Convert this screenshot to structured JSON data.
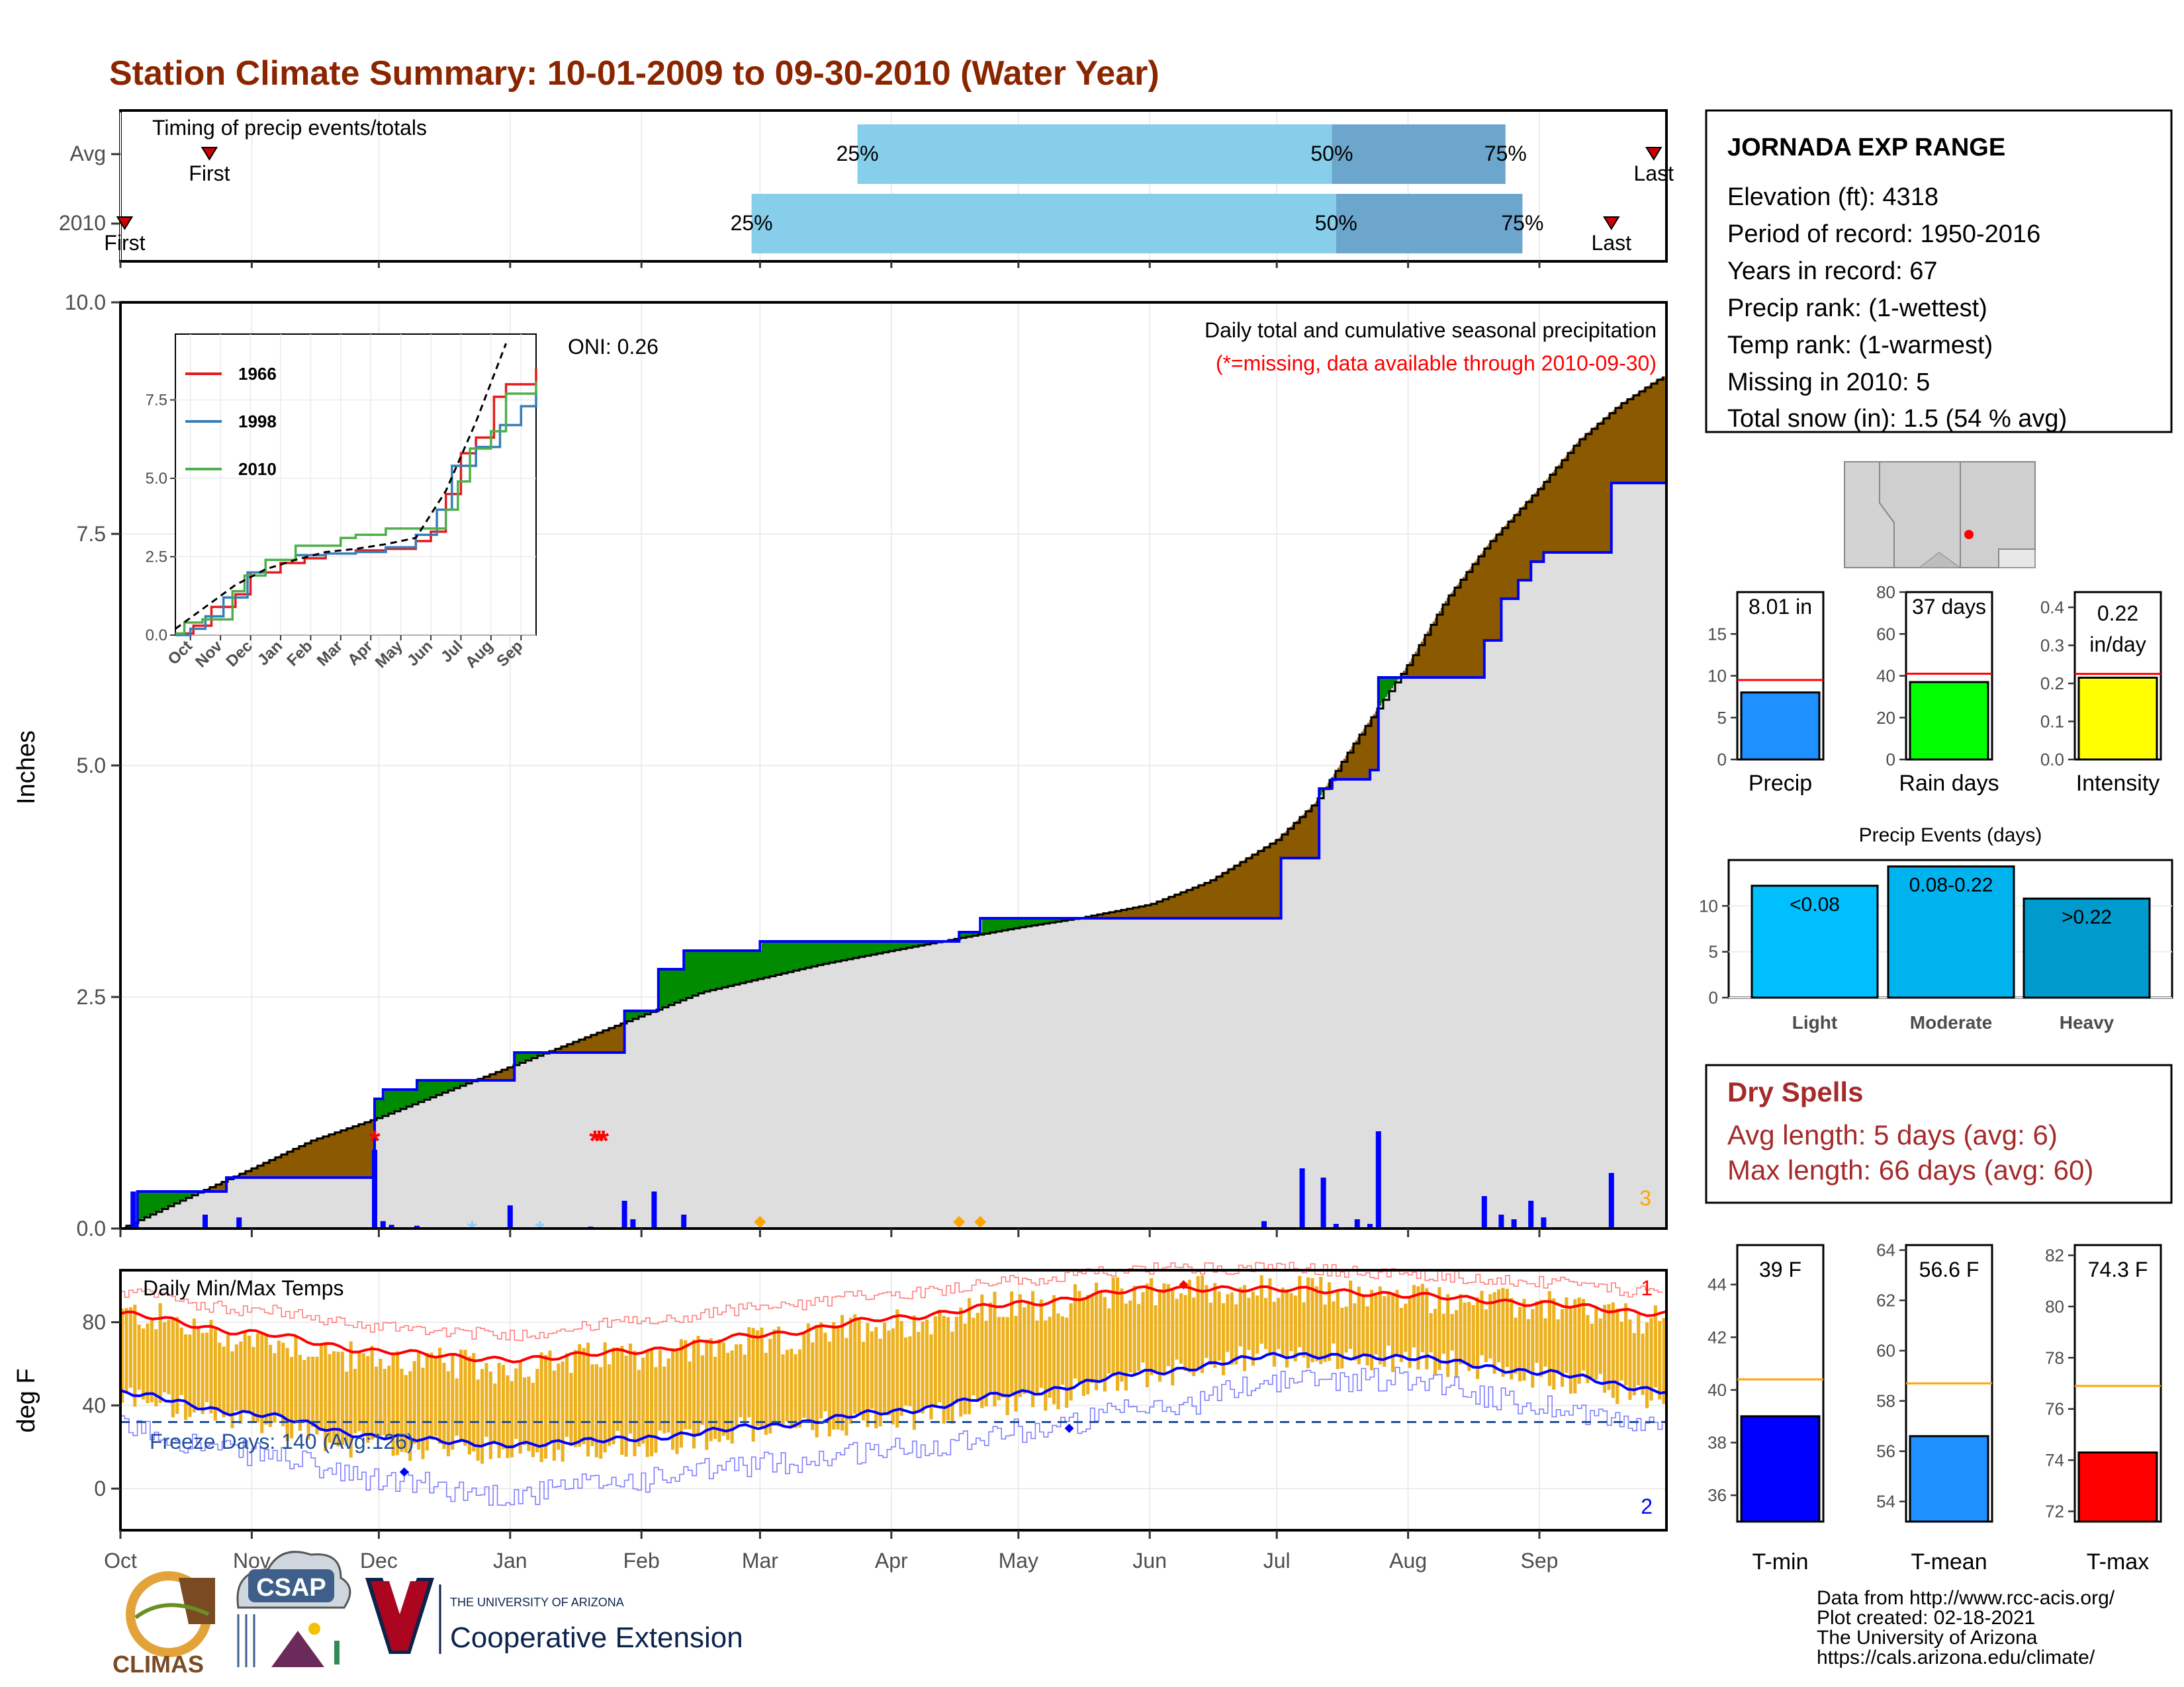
{
  "title": "Station Climate Summary: 10-01-2009 to 09-30-2010 (Water Year)",
  "colors": {
    "title": "#8B2500",
    "light_blue": "#87CEEB",
    "mid_blue": "#6CA6CD",
    "brown": "#8B5A00",
    "green": "#008B00",
    "grey_fill": "#DEDEDE",
    "gold": "#EDB120",
    "dry_spell_text": "#A52A2A"
  },
  "timing": {
    "label": "Timing of precip events/totals",
    "rows": [
      {
        "name": "Avg",
        "first_date": "2009-10-22",
        "last_date": "2010-09-28",
        "q25_date": "2010-03-24",
        "q50_date": "2010-07-14",
        "q75_date": "2010-08-24",
        "first_label": "First",
        "last_label": "Last",
        "q25_label": "25%",
        "q50_label": "50%",
        "q75_label": "75%"
      },
      {
        "name": "2010",
        "first_date": "2009-10-02",
        "last_date": "2010-09-18",
        "q25_date": "2010-02-27",
        "q50_date": "2010-07-15",
        "q75_date": "2010-08-28",
        "first_label": "First",
        "last_label": "Last",
        "q25_label": "25%",
        "q50_label": "50%",
        "q75_label": "75%"
      }
    ]
  },
  "precip_panel": {
    "ylabel": "Inches",
    "yticks": [
      "0.0",
      "2.5",
      "5.0",
      "7.5",
      "10.0"
    ],
    "ylim": [
      0,
      10
    ],
    "oni": "ONI: 0.26",
    "note1": "Daily total and cumulative seasonal precipitation",
    "note2": "(*=missing, data available through 2010-09-30)",
    "corner_count": "3",
    "avg_cumulative": [
      {
        "x": "2009-10-01",
        "y": 0.0
      },
      {
        "x": "2009-10-15",
        "y": 0.3
      },
      {
        "x": "2009-11-01",
        "y": 0.65
      },
      {
        "x": "2009-11-15",
        "y": 0.95
      },
      {
        "x": "2009-12-01",
        "y": 1.2
      },
      {
        "x": "2009-12-15",
        "y": 1.45
      },
      {
        "x": "2010-01-01",
        "y": 1.75
      },
      {
        "x": "2010-01-15",
        "y": 2.0
      },
      {
        "x": "2010-02-01",
        "y": 2.3
      },
      {
        "x": "2010-02-15",
        "y": 2.55
      },
      {
        "x": "2010-03-01",
        "y": 2.7
      },
      {
        "x": "2010-03-15",
        "y": 2.85
      },
      {
        "x": "2010-04-01",
        "y": 3.0
      },
      {
        "x": "2010-04-15",
        "y": 3.12
      },
      {
        "x": "2010-05-01",
        "y": 3.25
      },
      {
        "x": "2010-05-15",
        "y": 3.35
      },
      {
        "x": "2010-06-01",
        "y": 3.5
      },
      {
        "x": "2010-06-15",
        "y": 3.75
      },
      {
        "x": "2010-07-01",
        "y": 4.2
      },
      {
        "x": "2010-07-10",
        "y": 4.6
      },
      {
        "x": "2010-07-20",
        "y": 5.3
      },
      {
        "x": "2010-08-01",
        "y": 6.1
      },
      {
        "x": "2010-08-10",
        "y": 6.8
      },
      {
        "x": "2010-08-20",
        "y": 7.4
      },
      {
        "x": "2010-09-01",
        "y": 8.0
      },
      {
        "x": "2010-09-10",
        "y": 8.5
      },
      {
        "x": "2010-09-20",
        "y": 8.9
      },
      {
        "x": "2010-09-30",
        "y": 9.2
      }
    ],
    "cumulative_2010": [
      {
        "x": "2009-10-01",
        "y": 0.0
      },
      {
        "x": "2009-10-05",
        "y": 0.4
      },
      {
        "x": "2009-10-26",
        "y": 0.55
      },
      {
        "x": "2009-11-30",
        "y": 1.4
      },
      {
        "x": "2009-12-02",
        "y": 1.5
      },
      {
        "x": "2009-12-10",
        "y": 1.6
      },
      {
        "x": "2010-01-02",
        "y": 1.9
      },
      {
        "x": "2010-01-28",
        "y": 2.35
      },
      {
        "x": "2010-02-05",
        "y": 2.8
      },
      {
        "x": "2010-02-11",
        "y": 3.0
      },
      {
        "x": "2010-03-01",
        "y": 3.1
      },
      {
        "x": "2010-04-17",
        "y": 3.2
      },
      {
        "x": "2010-04-22",
        "y": 3.35
      },
      {
        "x": "2010-07-02",
        "y": 4.0
      },
      {
        "x": "2010-07-11",
        "y": 4.75
      },
      {
        "x": "2010-07-14",
        "y": 4.85
      },
      {
        "x": "2010-07-23",
        "y": 4.95
      },
      {
        "x": "2010-07-25",
        "y": 5.95
      },
      {
        "x": "2010-08-19",
        "y": 6.35
      },
      {
        "x": "2010-08-23",
        "y": 6.8
      },
      {
        "x": "2010-08-27",
        "y": 7.0
      },
      {
        "x": "2010-08-30",
        "y": 7.2
      },
      {
        "x": "2010-09-02",
        "y": 7.3
      },
      {
        "x": "2010-09-18",
        "y": 8.05
      }
    ],
    "daily_bars": [
      {
        "x": "2009-10-04",
        "y": 0.4
      },
      {
        "x": "2009-10-21",
        "y": 0.15
      },
      {
        "x": "2009-10-29",
        "y": 0.12
      },
      {
        "x": "2009-11-30",
        "y": 0.85
      },
      {
        "x": "2009-12-02",
        "y": 0.08
      },
      {
        "x": "2009-12-04",
        "y": 0.04
      },
      {
        "x": "2009-12-10",
        "y": 0.03
      },
      {
        "x": "2010-01-01",
        "y": 0.25
      },
      {
        "x": "2010-01-20",
        "y": 0.02
      },
      {
        "x": "2010-01-28",
        "y": 0.3
      },
      {
        "x": "2010-01-30",
        "y": 0.1
      },
      {
        "x": "2010-02-04",
        "y": 0.4
      },
      {
        "x": "2010-02-11",
        "y": 0.15
      },
      {
        "x": "2010-06-28",
        "y": 0.08
      },
      {
        "x": "2010-07-07",
        "y": 0.65
      },
      {
        "x": "2010-07-12",
        "y": 0.55
      },
      {
        "x": "2010-07-15",
        "y": 0.05
      },
      {
        "x": "2010-07-20",
        "y": 0.1
      },
      {
        "x": "2010-07-23",
        "y": 0.05
      },
      {
        "x": "2010-07-25",
        "y": 1.05
      },
      {
        "x": "2010-08-19",
        "y": 0.35
      },
      {
        "x": "2010-08-23",
        "y": 0.15
      },
      {
        "x": "2010-08-26",
        "y": 0.1
      },
      {
        "x": "2010-08-30",
        "y": 0.3
      },
      {
        "x": "2010-09-02",
        "y": 0.12
      },
      {
        "x": "2010-09-18",
        "y": 0.6
      }
    ],
    "missing_marks": [
      "2009-11-30",
      "2010-01-21",
      "2010-01-22",
      "2010-01-23"
    ],
    "snow_marks": [
      "2009-12-23",
      "2010-01-08"
    ],
    "orange_marks": [
      "2010-03-01",
      "2010-04-17",
      "2010-04-22"
    ]
  },
  "inset": {
    "yticks": [
      "0.0",
      "2.5",
      "5.0",
      "7.5"
    ],
    "xticks": [
      "Oct",
      "Nov",
      "Dec",
      "Jan",
      "Feb",
      "Mar",
      "Apr",
      "May",
      "Jun",
      "Jul",
      "Aug",
      "Sep"
    ],
    "legend": [
      {
        "name": "1966",
        "color": "#E41A1C"
      },
      {
        "name": "1998",
        "color": "#377EB8"
      },
      {
        "name": "2010",
        "color": "#4DAF4A"
      }
    ],
    "avg_line": [
      [
        0,
        0.2
      ],
      [
        1,
        0.9
      ],
      [
        2,
        1.6
      ],
      [
        3,
        2.1
      ],
      [
        4,
        2.4
      ],
      [
        5,
        2.65
      ],
      [
        6,
        2.75
      ],
      [
        7,
        2.9
      ],
      [
        8,
        3.1
      ],
      [
        9,
        4.6
      ],
      [
        10,
        6.8
      ],
      [
        11,
        9.3
      ]
    ],
    "series": [
      [
        [
          0,
          0.05
        ],
        [
          0.6,
          0.3
        ],
        [
          1.2,
          0.9
        ],
        [
          2,
          1.3
        ],
        [
          2.5,
          2.0
        ],
        [
          3.5,
          2.3
        ],
        [
          4.3,
          2.45
        ],
        [
          5,
          2.6
        ],
        [
          6,
          2.7
        ],
        [
          7,
          2.75
        ],
        [
          8,
          3.0
        ],
        [
          8.5,
          3.3
        ],
        [
          9,
          4.5
        ],
        [
          9.5,
          5.8
        ],
        [
          10,
          6.3
        ],
        [
          10.6,
          7.6
        ],
        [
          11,
          8.0
        ],
        [
          12,
          8.5
        ]
      ],
      [
        [
          0,
          0.0
        ],
        [
          0.5,
          0.2
        ],
        [
          1,
          0.6
        ],
        [
          1.6,
          1.2
        ],
        [
          2.4,
          2.0
        ],
        [
          3,
          2.4
        ],
        [
          4,
          2.55
        ],
        [
          5,
          2.6
        ],
        [
          6,
          2.65
        ],
        [
          7,
          2.8
        ],
        [
          8,
          3.2
        ],
        [
          8.7,
          4.0
        ],
        [
          9.2,
          5.4
        ],
        [
          10,
          6.0
        ],
        [
          10.8,
          6.7
        ],
        [
          11.5,
          7.3
        ],
        [
          12,
          7.8
        ]
      ],
      [
        [
          0,
          0.05
        ],
        [
          0.3,
          0.4
        ],
        [
          0.9,
          0.5
        ],
        [
          1.9,
          1.4
        ],
        [
          2.3,
          1.9
        ],
        [
          3,
          2.4
        ],
        [
          4,
          2.85
        ],
        [
          5.5,
          3.1
        ],
        [
          6,
          3.2
        ],
        [
          7,
          3.4
        ],
        [
          8,
          3.4
        ],
        [
          9,
          4.0
        ],
        [
          9.4,
          4.9
        ],
        [
          9.8,
          5.95
        ],
        [
          10.5,
          6.5
        ],
        [
          11,
          7.7
        ],
        [
          12,
          8.1
        ]
      ]
    ]
  },
  "temp_panel": {
    "ylabel": "deg F",
    "yticks": [
      "0",
      "40",
      "80"
    ],
    "ylim": [
      -20,
      105
    ],
    "label": "Daily Min/Max Temps",
    "freeze_label": "Freeze Days: 140 (Avg:126)",
    "freeze_threshold": 32,
    "corner_top": "1",
    "corner_bottom": "2",
    "xticks": [
      "Oct",
      "Nov",
      "Dec",
      "Jan",
      "Feb",
      "Mar",
      "Apr",
      "May",
      "Jun",
      "Jul",
      "Aug",
      "Sep"
    ],
    "avg_max": [
      [
        0,
        84
      ],
      [
        1,
        75
      ],
      [
        2,
        66
      ],
      [
        3,
        62
      ],
      [
        4,
        66
      ],
      [
        5,
        74
      ],
      [
        6,
        82
      ],
      [
        7,
        89
      ],
      [
        8,
        96
      ],
      [
        9,
        96
      ],
      [
        10,
        93
      ],
      [
        11,
        89
      ],
      [
        12,
        84
      ]
    ],
    "avg_min": [
      [
        0,
        46
      ],
      [
        1,
        36
      ],
      [
        2,
        25
      ],
      [
        3,
        21
      ],
      [
        4,
        24
      ],
      [
        5,
        30
      ],
      [
        6,
        37
      ],
      [
        7,
        46
      ],
      [
        8,
        56
      ],
      [
        9,
        64
      ],
      [
        10,
        63
      ],
      [
        11,
        56
      ],
      [
        12,
        47
      ]
    ],
    "rec_max": [
      [
        0,
        94
      ],
      [
        1,
        86
      ],
      [
        2,
        78
      ],
      [
        3,
        74
      ],
      [
        4,
        80
      ],
      [
        5,
        87
      ],
      [
        6,
        94
      ],
      [
        7,
        100
      ],
      [
        8,
        106
      ],
      [
        9,
        106
      ],
      [
        10,
        103
      ],
      [
        11,
        99
      ],
      [
        12,
        94
      ]
    ],
    "rec_min": [
      [
        0,
        29
      ],
      [
        1,
        17
      ],
      [
        2,
        4
      ],
      [
        3,
        -3
      ],
      [
        4,
        4
      ],
      [
        5,
        12
      ],
      [
        6,
        19
      ],
      [
        7,
        28
      ],
      [
        8,
        38
      ],
      [
        9,
        52
      ],
      [
        10,
        53
      ],
      [
        11,
        40
      ],
      [
        12,
        29
      ]
    ],
    "tmax_2010": [
      [
        0,
        84
      ],
      [
        1,
        72
      ],
      [
        2,
        62
      ],
      [
        3,
        58
      ],
      [
        4,
        65
      ],
      [
        5,
        70
      ],
      [
        6,
        80
      ],
      [
        7,
        88
      ],
      [
        8,
        96
      ],
      [
        9,
        95
      ],
      [
        10,
        92
      ],
      [
        11,
        88
      ],
      [
        12,
        80
      ]
    ],
    "tmin_2010": [
      [
        0,
        44
      ],
      [
        1,
        32
      ],
      [
        2,
        20
      ],
      [
        3,
        18
      ],
      [
        4,
        22
      ],
      [
        5,
        28
      ],
      [
        6,
        34
      ],
      [
        7,
        42
      ],
      [
        8,
        55
      ],
      [
        9,
        64
      ],
      [
        10,
        62
      ],
      [
        11,
        54
      ],
      [
        12,
        44
      ]
    ]
  },
  "station_box": {
    "name": "JORNADA EXP RANGE",
    "lines": [
      "Elevation (ft): 4318",
      "Period of record: 1950-2016",
      "Years in record: 67",
      "Precip rank:  (1-wettest)",
      "Temp rank:  (1-warmest)",
      "Missing in 2010: 5",
      "Total snow (in): 1.5 (54 % avg)"
    ]
  },
  "mini_bars": [
    {
      "name": "Precip",
      "label": "8.01 in",
      "value": 8.01,
      "avg": 9.5,
      "ymax": 20,
      "yticks": [
        "0",
        "5",
        "10",
        "15"
      ],
      "tickvals": [
        0,
        5,
        10,
        15
      ],
      "color": "#1E90FF"
    },
    {
      "name": "Rain days",
      "label": "37 days",
      "value": 37,
      "avg": 41,
      "ymax": 80,
      "yticks": [
        "0",
        "20",
        "40",
        "60",
        "80"
      ],
      "tickvals": [
        0,
        20,
        40,
        60,
        80
      ],
      "color": "#00FF00"
    },
    {
      "name": "Intensity",
      "label_top": "0.22",
      "label_bottom": "in/day",
      "value": 0.215,
      "avg": 0.225,
      "ymax": 0.44,
      "yticks": [
        "0.0",
        "0.1",
        "0.2",
        "0.3",
        "0.4"
      ],
      "tickvals": [
        0,
        0.1,
        0.2,
        0.3,
        0.4
      ],
      "color": "#FFFF00"
    }
  ],
  "events": {
    "title": "Precip Events (days)",
    "yticks": [
      "0",
      "5",
      "10"
    ],
    "ymax": 15,
    "bars": [
      {
        "name": "Light",
        "label": "<0.08",
        "value": 12.2,
        "color": "#00BFFF"
      },
      {
        "name": "Moderate",
        "label": "0.08-0.22",
        "value": 14.3,
        "color": "#00B2EE"
      },
      {
        "name": "Heavy",
        "label": ">0.22",
        "value": 10.8,
        "color": "#009ACD"
      }
    ]
  },
  "dry_spells": {
    "title": "Dry Spells",
    "avg_line": "Avg length: 5 days (avg: 6)",
    "max_line": "Max length: 66 days (avg: 60)"
  },
  "temp_bars": [
    {
      "name": "T-min",
      "label": "39 F",
      "value": 39,
      "avg": 40.4,
      "ymin": 35,
      "ymax": 45.5,
      "yticks": [
        "36",
        "38",
        "40",
        "42",
        "44"
      ],
      "tickvals": [
        36,
        38,
        40,
        42,
        44
      ],
      "color": "#0000FF"
    },
    {
      "name": "T-mean",
      "label": "56.6 F",
      "value": 56.6,
      "avg": 58.7,
      "ymin": 53.2,
      "ymax": 64.2,
      "yticks": [
        "54",
        "56",
        "58",
        "60",
        "62",
        "64"
      ],
      "tickvals": [
        54,
        56,
        58,
        60,
        62,
        64
      ],
      "color": "#1E90FF"
    },
    {
      "name": "T-max",
      "label": "74.3 F",
      "value": 74.3,
      "avg": 76.9,
      "ymin": 71.6,
      "ymax": 82.4,
      "yticks": [
        "72",
        "74",
        "76",
        "78",
        "80",
        "82"
      ],
      "tickvals": [
        72,
        74,
        76,
        78,
        80,
        82
      ],
      "color": "#FF0000"
    }
  ],
  "credits": [
    "Data from http://www.rcc-acis.org/",
    "Plot created: 02-18-2021",
    "The University of Arizona",
    "https://cals.arizona.edu/climate/"
  ],
  "logos": {
    "climas": "CLIMAS",
    "csap": "CSAP",
    "ua_small": "THE UNIVERSITY OF ARIZONA",
    "ua_big": "Cooperative Extension"
  }
}
